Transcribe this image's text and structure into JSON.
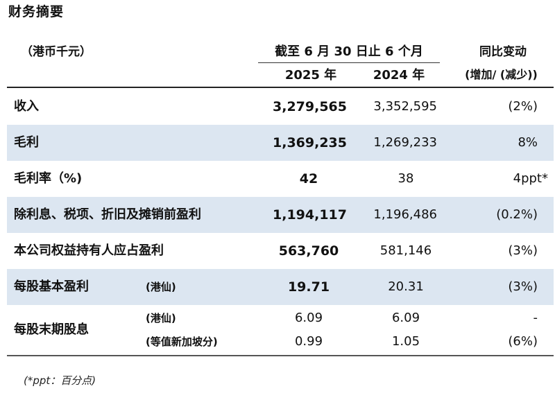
{
  "title": "财务摘要",
  "unit": "（港币千元）",
  "period_header": "截至 6 月 30 日止 6 个月",
  "years": [
    "2025 年",
    "2024 年"
  ],
  "change_header": [
    "同比变动",
    "(增加/ (减少))"
  ],
  "rows": [
    {
      "label": "收入",
      "sub": "",
      "v2025": "3,279,565",
      "v2024": "3,352,595",
      "change": "(2%)"
    },
    {
      "label": "毛利",
      "sub": "",
      "v2025": "1,369,235",
      "v2024": "1,269,233",
      "change": "8%"
    },
    {
      "label": "毛利率（%)",
      "sub": "",
      "v2025": "42",
      "v2024": "38",
      "change": "4ppt*"
    },
    {
      "label": "除利息、税项、折旧及摊销前盈利",
      "sub": "",
      "v2025": "1,194,117",
      "v2024": "1,196,486",
      "change": "(0.2%)"
    },
    {
      "label": "本公司权益持有人应占盈利",
      "sub": "",
      "v2025": "563,760",
      "v2024": "581,146",
      "change": "(3%)"
    },
    {
      "label": "每股基本盈利",
      "sub": "(港仙)",
      "v2025": "19.71",
      "v2024": "20.31",
      "change": "(3%)"
    }
  ],
  "dividend": {
    "label": "每股末期股息",
    "lines": [
      {
        "sub": "(港仙)",
        "v2025": "6.09",
        "v2024": "6.09",
        "change": "-"
      },
      {
        "sub": "(等值新加坡分)",
        "v2025": "0.99",
        "v2024": "1.05",
        "change": "(6%)"
      }
    ]
  },
  "footnote": "(*ppt：百分点)"
}
